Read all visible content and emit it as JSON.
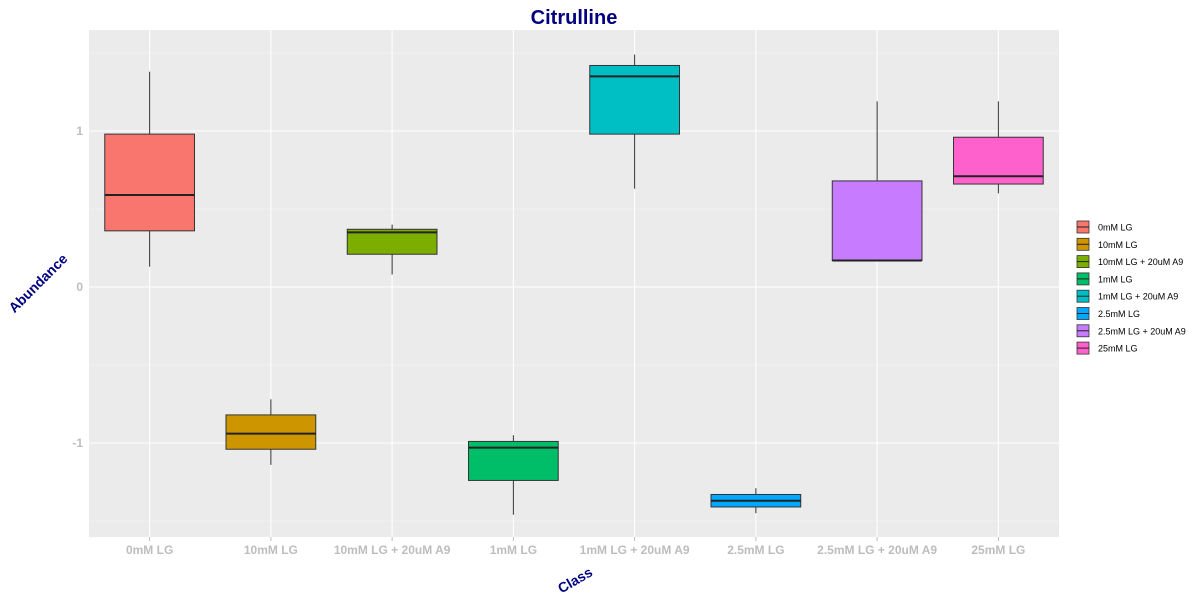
{
  "chart_data": {
    "type": "boxplot",
    "title": "Citrulline",
    "xlabel": "Class",
    "ylabel": "Abundance",
    "ylim": [
      -1.6,
      1.65
    ],
    "yticks": [
      -1,
      0,
      1
    ],
    "grid": true,
    "legend_position": "right",
    "categories": [
      "0mM LG",
      "10mM LG",
      "10mM LG + 20uM A9",
      "1mM LG",
      "1mM LG + 20uM A9",
      "2.5mM LG",
      "2.5mM LG + 20uM A9",
      "25mM LG"
    ],
    "series": [
      {
        "name": "0mM LG",
        "color": "#F8766D",
        "min": 0.13,
        "q1": 0.36,
        "median": 0.59,
        "q3": 0.98,
        "max": 1.38
      },
      {
        "name": "10mM LG",
        "color": "#CD9600",
        "min": -1.14,
        "q1": -1.04,
        "median": -0.94,
        "q3": -0.82,
        "max": -0.72
      },
      {
        "name": "10mM LG + 20uM A9",
        "color": "#7CAE00",
        "min": 0.08,
        "q1": 0.21,
        "median": 0.35,
        "q3": 0.37,
        "max": 0.4
      },
      {
        "name": "1mM LG",
        "color": "#00BE67",
        "min": -1.46,
        "q1": -1.24,
        "median": -1.03,
        "q3": -0.99,
        "max": -0.95
      },
      {
        "name": "1mM LG + 20uM A9",
        "color": "#00BFC4",
        "min": 0.63,
        "q1": 0.98,
        "median": 1.35,
        "q3": 1.42,
        "max": 1.49
      },
      {
        "name": "2.5mM LG",
        "color": "#00A9FF",
        "min": -1.45,
        "q1": -1.41,
        "median": -1.37,
        "q3": -1.33,
        "max": -1.29
      },
      {
        "name": "2.5mM LG + 20uM A9",
        "color": "#C77CFF",
        "min": 0.17,
        "q1": 0.17,
        "median": 0.17,
        "q3": 0.68,
        "max": 1.19
      },
      {
        "name": "25mM LG",
        "color": "#FF61CC",
        "min": 0.6,
        "q1": 0.66,
        "median": 0.71,
        "q3": 0.96,
        "max": 1.19
      }
    ]
  }
}
